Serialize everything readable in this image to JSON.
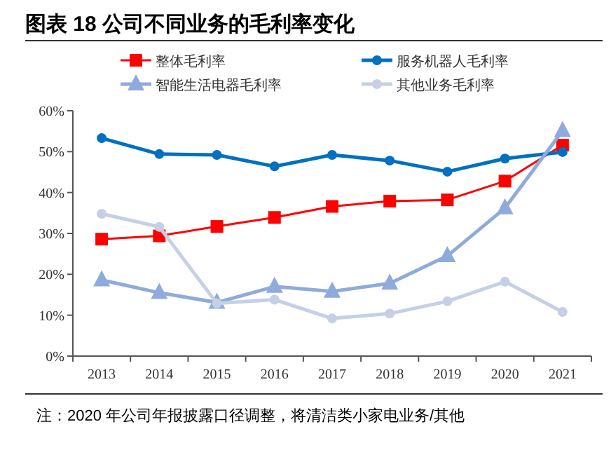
{
  "chart_data": {
    "type": "line",
    "title": "图表 18  公司不同业务的毛利率变化",
    "categories": [
      "2013",
      "2014",
      "2015",
      "2016",
      "2017",
      "2018",
      "2019",
      "2020",
      "2021"
    ],
    "series": [
      {
        "name": "整体毛利率",
        "color": "#ff0000",
        "marker": "square",
        "values": [
          28.6,
          29.4,
          31.7,
          33.9,
          36.6,
          37.9,
          38.2,
          42.8,
          51.6
        ]
      },
      {
        "name": "服务机器人毛利率",
        "color": "#0070c0",
        "marker": "circle",
        "values": [
          53.3,
          49.4,
          49.2,
          46.4,
          49.2,
          47.8,
          45.1,
          48.3,
          49.9
        ]
      },
      {
        "name": "智能生活电器毛利率",
        "color": "#8faadc",
        "marker": "triangle",
        "values": [
          18.6,
          15.5,
          13.1,
          17.0,
          15.8,
          17.8,
          24.5,
          36.2,
          55.1
        ]
      },
      {
        "name": "其他业务毛利率",
        "color": "#c5d0e6",
        "marker": "circle",
        "values": [
          34.8,
          31.6,
          12.9,
          13.8,
          9.2,
          10.4,
          13.4,
          18.2,
          10.8
        ]
      }
    ],
    "ylim": [
      0,
      60
    ],
    "yticks": [
      {
        "value": 0,
        "label": "0%"
      },
      {
        "value": 10,
        "label": "10%"
      },
      {
        "value": 20,
        "label": "20%"
      },
      {
        "value": 30,
        "label": "30%"
      },
      {
        "value": 40,
        "label": "40%"
      },
      {
        "value": 50,
        "label": "50%"
      },
      {
        "value": 60,
        "label": "60%"
      }
    ],
    "legend": "top",
    "grid": false,
    "annotations": [
      "注：2020 年公司年报披露口径调整，将清洁类小家电业务/其他"
    ]
  }
}
